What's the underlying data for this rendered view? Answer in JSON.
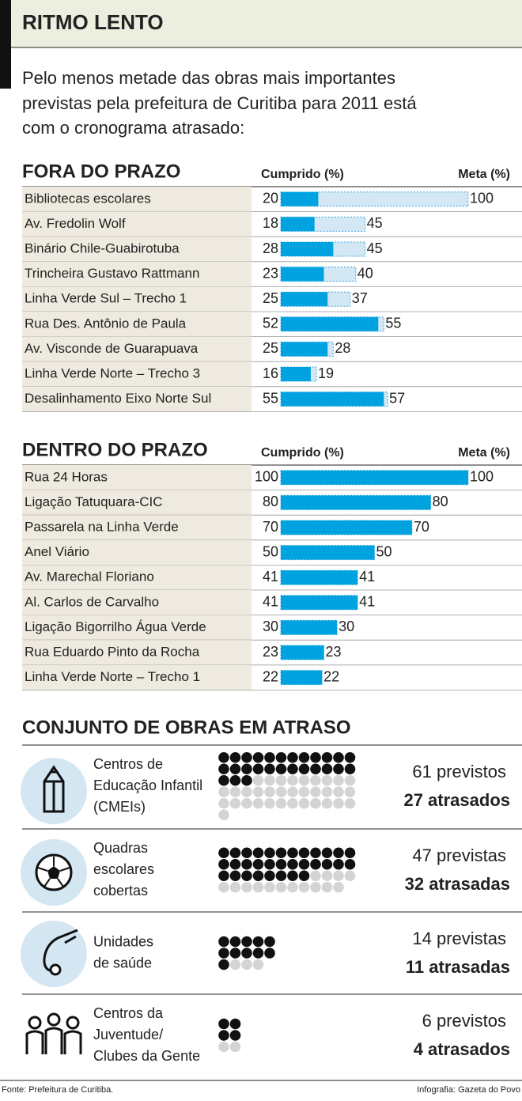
{
  "header": {
    "title": "RITMO LENTO",
    "intro": [
      "Pelo menos metade das obras mais importantes",
      "previstas pela prefeitura de Curitiba para 2011 está",
      "com o cronograma atrasado:"
    ]
  },
  "tables": [
    {
      "title": "FORA DO PRAZO",
      "col_done": "Cumprido (%)",
      "col_goal": "Meta (%)",
      "rows": [
        {
          "name": "Bibliotecas escolares",
          "done": 20,
          "goal": 100
        },
        {
          "name": "Av. Fredolin Wolf",
          "done": 18,
          "goal": 45
        },
        {
          "name": "Binário Chile-Guabirotuba",
          "done": 28,
          "goal": 45
        },
        {
          "name": "Trincheira Gustavo Rattmann",
          "done": 23,
          "goal": 40
        },
        {
          "name": "Linha Verde Sul – Trecho 1",
          "done": 25,
          "goal": 37
        },
        {
          "name": "Rua Des. Antônio de Paula",
          "done": 52,
          "goal": 55
        },
        {
          "name": "Av. Visconde de Guarapuava",
          "done": 25,
          "goal": 28
        },
        {
          "name": "Linha Verde Norte – Trecho 3",
          "done": 16,
          "goal": 19
        },
        {
          "name": "Desalinhamento Eixo Norte Sul",
          "done": 55,
          "goal": 57
        }
      ]
    },
    {
      "title": "DENTRO DO PRAZO",
      "col_done": "Cumprido (%)",
      "col_goal": "Meta (%)",
      "rows": [
        {
          "name": "Rua 24 Horas",
          "done": 100,
          "goal": 100
        },
        {
          "name": "Ligação Tatuquara-CIC",
          "done": 80,
          "goal": 80
        },
        {
          "name": "Passarela na Linha Verde",
          "done": 70,
          "goal": 70
        },
        {
          "name": "Anel Viário",
          "done": 50,
          "goal": 50
        },
        {
          "name": "Av. Marechal Floriano",
          "done": 41,
          "goal": 41
        },
        {
          "name": "Al. Carlos de Carvalho",
          "done": 41,
          "goal": 41
        },
        {
          "name": "Ligação Bigorrilho Água Verde",
          "done": 30,
          "goal": 30
        },
        {
          "name": "Rua Eduardo Pinto da Rocha",
          "done": 23,
          "goal": 23
        },
        {
          "name": "Linha Verde Norte – Trecho 1",
          "done": 22,
          "goal": 22
        }
      ]
    }
  ],
  "groups": {
    "title": "CONJUNTO DE OBRAS EM ATRASO",
    "items": [
      {
        "label": [
          "Centros de",
          "Educação Infantil",
          "(CMEIs)"
        ],
        "total": 61,
        "total_label": "61 previstos",
        "late": 27,
        "late_label": "27 atrasados"
      },
      {
        "label": [
          "Quadras",
          "escolares",
          "cobertas"
        ],
        "total": 47,
        "total_label": "47 previstas",
        "late": 32,
        "late_label": "32 atrasadas"
      },
      {
        "label": [
          "Unidades",
          "de saúde"
        ],
        "total": 14,
        "total_label": "14 previstas",
        "late": 11,
        "late_label": "11 atrasadas"
      },
      {
        "label": [
          "Centros da",
          "Juventude/",
          "Clubes da Gente"
        ],
        "total": 6,
        "total_label": "6 previstos",
        "late": 4,
        "late_label": "4 atrasados"
      }
    ]
  },
  "footer": {
    "source": "Fonte: Prefeitura de Curitiba.",
    "credit": "Infografia: Gazeta do Povo"
  }
}
